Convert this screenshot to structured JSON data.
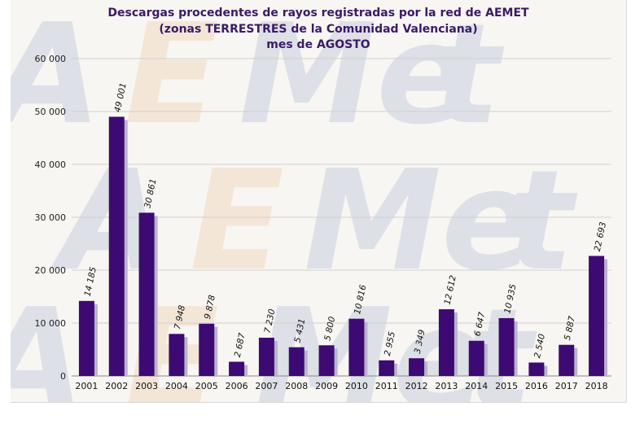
{
  "chart_data": {
    "type": "bar",
    "title": "Descargas procedentes de rayos registradas por la red de AEMET",
    "subtitle_lines": [
      "(zonas TERRESTRES de la Comunidad Valenciana)",
      "mes de AGOSTO"
    ],
    "xlabel": "",
    "ylabel": "",
    "categories": [
      "2001",
      "2002",
      "2003",
      "2004",
      "2005",
      "2006",
      "2007",
      "2008",
      "2009",
      "2010",
      "2011",
      "2012",
      "2013",
      "2014",
      "2015",
      "2016",
      "2017",
      "2018"
    ],
    "values": [
      14185,
      49001,
      30861,
      7948,
      9878,
      2687,
      7230,
      5431,
      5800,
      10816,
      2955,
      3349,
      12612,
      6647,
      10935,
      2540,
      5887,
      22693
    ],
    "data_labels": [
      "14 185",
      "49 001",
      "30 861",
      "7 948",
      "9 878",
      "2 687",
      "7 230",
      "5 431",
      "5 800",
      "10 816",
      "2 955",
      "3 349",
      "12 612",
      "6 647",
      "10 935",
      "2 540",
      "5 887",
      "22 693"
    ],
    "ylim": [
      0,
      60000
    ],
    "y_ticks": [
      0,
      10000,
      20000,
      30000,
      40000,
      50000,
      60000
    ],
    "y_tick_labels": [
      "0",
      "10 000",
      "20 000",
      "30 000",
      "40 000",
      "50 000",
      "60 000"
    ],
    "grid": true,
    "legend": "none",
    "watermark": "AEMet",
    "colors": {
      "bar": "#3d0a73",
      "bar_shadow": "#b9b5c8",
      "title": "#3b1a66",
      "grid": "#d0d0d0",
      "background": "#f7f6f2"
    }
  }
}
